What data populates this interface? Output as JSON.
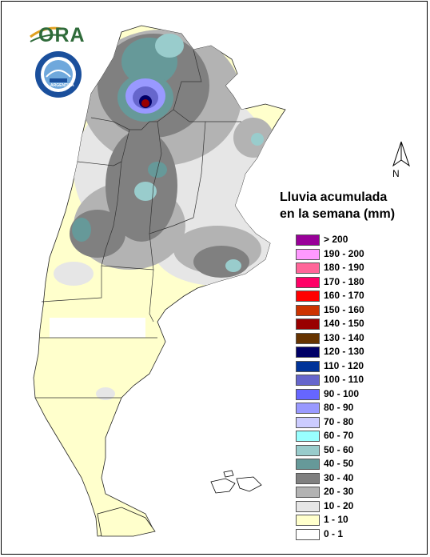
{
  "logo": {
    "text": "ORA",
    "seal_text": "ARGENTINA"
  },
  "title": {
    "line1": "Lluvia acumulada",
    "line2": "en la semana (mm)"
  },
  "north": {
    "label": "N"
  },
  "legend": [
    {
      "label": "> 200",
      "color": "#990099"
    },
    {
      "label": "190 - 200",
      "color": "#ff99ff"
    },
    {
      "label": "180 - 190",
      "color": "#ff6699"
    },
    {
      "label": "170 - 180",
      "color": "#ff0066"
    },
    {
      "label": "160 - 170",
      "color": "#ff0000"
    },
    {
      "label": "150 - 160",
      "color": "#cc3300"
    },
    {
      "label": "140 - 150",
      "color": "#990000"
    },
    {
      "label": "130 - 140",
      "color": "#663300"
    },
    {
      "label": "120 - 130",
      "color": "#000066"
    },
    {
      "label": "110 - 120",
      "color": "#003399"
    },
    {
      "label": "100 - 110",
      "color": "#6666cc"
    },
    {
      "label": "90 - 100",
      "color": "#6666ff"
    },
    {
      "label": "80 - 90",
      "color": "#9999ff"
    },
    {
      "label": "70 - 80",
      "color": "#ccccff"
    },
    {
      "label": "60 - 70",
      "color": "#99ffff"
    },
    {
      "label": "50 - 60",
      "color": "#99cccc"
    },
    {
      "label": "40 - 50",
      "color": "#669999"
    },
    {
      "label": "30 - 40",
      "color": "#808080"
    },
    {
      "label": "20 - 30",
      "color": "#b3b3b3"
    },
    {
      "label": "10 - 20",
      "color": "#e6e6e6"
    },
    {
      "label": "1 - 10",
      "color": "#ffffcc"
    },
    {
      "label": "0 - 1",
      "color": "#ffffff"
    }
  ]
}
